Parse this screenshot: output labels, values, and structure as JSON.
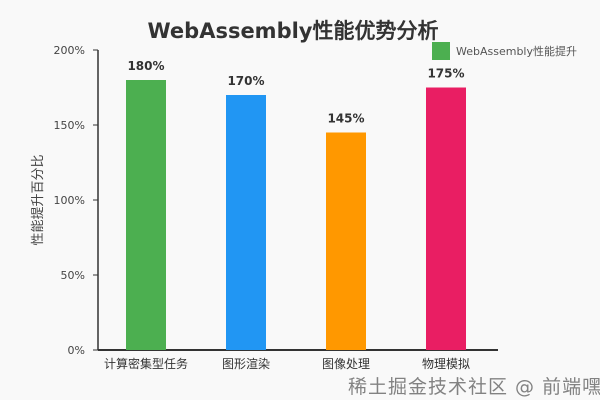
{
  "chart_data": {
    "type": "bar",
    "title": "WebAssembly性能优势分析",
    "xlabel": "",
    "ylabel": "性能提升百分比",
    "categories": [
      "计算密集型任务",
      "图形渲染",
      "图像处理",
      "物理模拟"
    ],
    "series": [
      {
        "name": "WebAssembly性能提升",
        "values": [
          180,
          170,
          145,
          175
        ]
      }
    ],
    "data_labels": [
      "180%",
      "170%",
      "145%",
      "175%"
    ],
    "colors": [
      "#4CAF50",
      "#2196F3",
      "#FF9800",
      "#E91E63"
    ],
    "ylim": [
      0,
      200
    ],
    "yticks": [
      0,
      50,
      100,
      150,
      200
    ],
    "ytick_labels": [
      "0%",
      "50%",
      "100%",
      "150%",
      "200%"
    ],
    "grid": false,
    "legend_position": "top-right"
  },
  "watermark": "稀土掘金技术社区 @ 前端嘿起"
}
